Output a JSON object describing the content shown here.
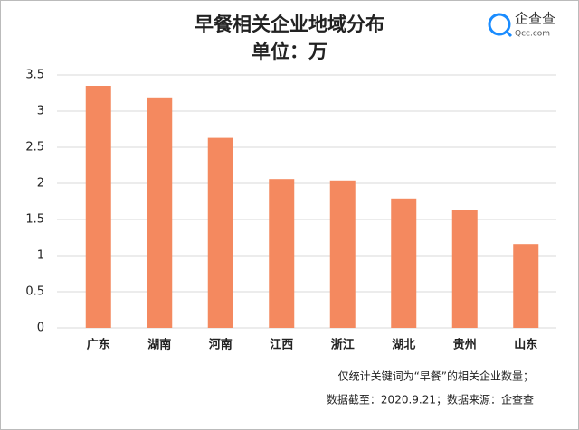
{
  "chart_data": {
    "type": "bar",
    "title": "早餐相关企业地域分布",
    "subtitle": "单位：万",
    "categories": [
      "广东",
      "湖南",
      "河南",
      "江西",
      "浙江",
      "湖北",
      "贵州",
      "山东"
    ],
    "values": [
      3.35,
      3.19,
      2.63,
      2.06,
      2.04,
      1.79,
      1.63,
      1.16
    ],
    "color": "#f4895f",
    "ylim": [
      0,
      3.5
    ],
    "yticks": [
      0,
      0.5,
      1,
      1.5,
      2,
      2.5,
      3,
      3.5
    ],
    "grid": true
  },
  "logo": {
    "name": "企查查",
    "domain": "Qcc.com"
  },
  "notes": [
    "仅统计关键词为“早餐”的相关企业数量；",
    "数据截至：2020.9.21；数据来源：企查查"
  ]
}
